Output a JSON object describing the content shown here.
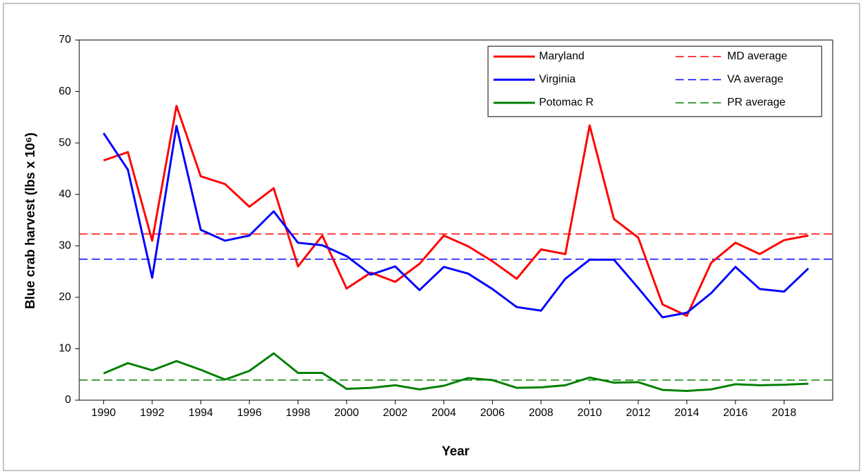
{
  "chart_data": {
    "type": "line",
    "x_label": "Year",
    "y_label": "Blue crab harvest (lbs x 10⁶)",
    "x": [
      1990,
      1991,
      1992,
      1993,
      1994,
      1995,
      1996,
      1997,
      1998,
      1999,
      2000,
      2001,
      2002,
      2003,
      2004,
      2005,
      2006,
      2007,
      2008,
      2009,
      2010,
      2011,
      2012,
      2013,
      2014,
      2015,
      2016,
      2017,
      2018,
      2019
    ],
    "series": [
      {
        "name": "Maryland",
        "color": "#ff0000",
        "values": [
          46.6,
          48.2,
          31,
          57.2,
          43.5,
          42,
          37.6,
          41.2,
          26,
          32,
          21.7,
          24.8,
          23,
          26.5,
          32,
          29.9,
          27,
          23.6,
          29.3,
          28.4,
          53.4,
          35.2,
          31.6,
          18.6,
          16.4,
          26.7,
          30.6,
          28.4,
          31.1,
          32
        ]
      },
      {
        "name": "Virginia",
        "color": "#0000ff",
        "values": [
          51.9,
          44.8,
          23.8,
          53.3,
          33.1,
          31,
          32,
          36.7,
          30.6,
          30.1,
          28,
          24.4,
          26,
          21.4,
          25.9,
          24.6,
          21.6,
          18.1,
          17.4,
          23.6,
          27.3,
          27.3,
          21.8,
          16.1,
          17,
          20.8,
          25.9,
          21.6,
          21.1,
          25.6
        ]
      },
      {
        "name": "Potomac R",
        "color": "#008000",
        "values": [
          5.2,
          7.2,
          5.8,
          7.6,
          5.9,
          4,
          5.7,
          9.1,
          5.3,
          5.3,
          2.2,
          2.4,
          2.9,
          2.1,
          2.8,
          4.3,
          3.9,
          2.4,
          2.5,
          2.9,
          4.4,
          3.4,
          3.5,
          2,
          1.8,
          2.1,
          3.1,
          2.9,
          3,
          3.2
        ]
      }
    ],
    "averages": [
      {
        "name": "MD average",
        "color": "#ff0000",
        "value": 32.3
      },
      {
        "name": "VA average",
        "color": "#0000ff",
        "value": 27.4
      },
      {
        "name": "PR average",
        "color": "#008000",
        "value": 3.9
      }
    ],
    "xlim": [
      1989,
      2020
    ],
    "xticks": [
      1990,
      1992,
      1994,
      1996,
      1998,
      2000,
      2002,
      2004,
      2006,
      2008,
      2010,
      2012,
      2014,
      2016,
      2018
    ],
    "ylim": [
      0,
      70
    ],
    "yticks": [
      0,
      10,
      20,
      30,
      40,
      50,
      60,
      70
    ],
    "grid": false,
    "legend": "upper right"
  }
}
